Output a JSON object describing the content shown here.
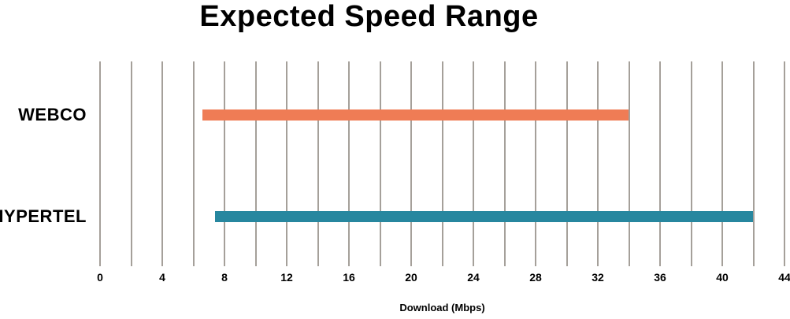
{
  "chart_data": {
    "type": "bar",
    "orientation": "horizontal-range",
    "title": "Expected Speed Range",
    "xlabel": "Download (Mbps)",
    "categories": [
      "WEBCO",
      "HYPERTEL"
    ],
    "series": [
      {
        "name": "WEBCO",
        "range_mbps": [
          6.6,
          34
        ],
        "color": "#ef7c55"
      },
      {
        "name": "HYPERTEL",
        "range_mbps": [
          7.4,
          42
        ],
        "color": "#27879f"
      }
    ],
    "xlim": [
      0,
      44
    ],
    "xticks": [
      0,
      4,
      8,
      12,
      16,
      20,
      24,
      28,
      32,
      36,
      40,
      44
    ],
    "gridline_step": 2,
    "grid": "vertical-only",
    "legend": "none",
    "colors": {
      "gridline": "#a5a09a",
      "text": "#000000",
      "background": "#ffffff"
    }
  }
}
